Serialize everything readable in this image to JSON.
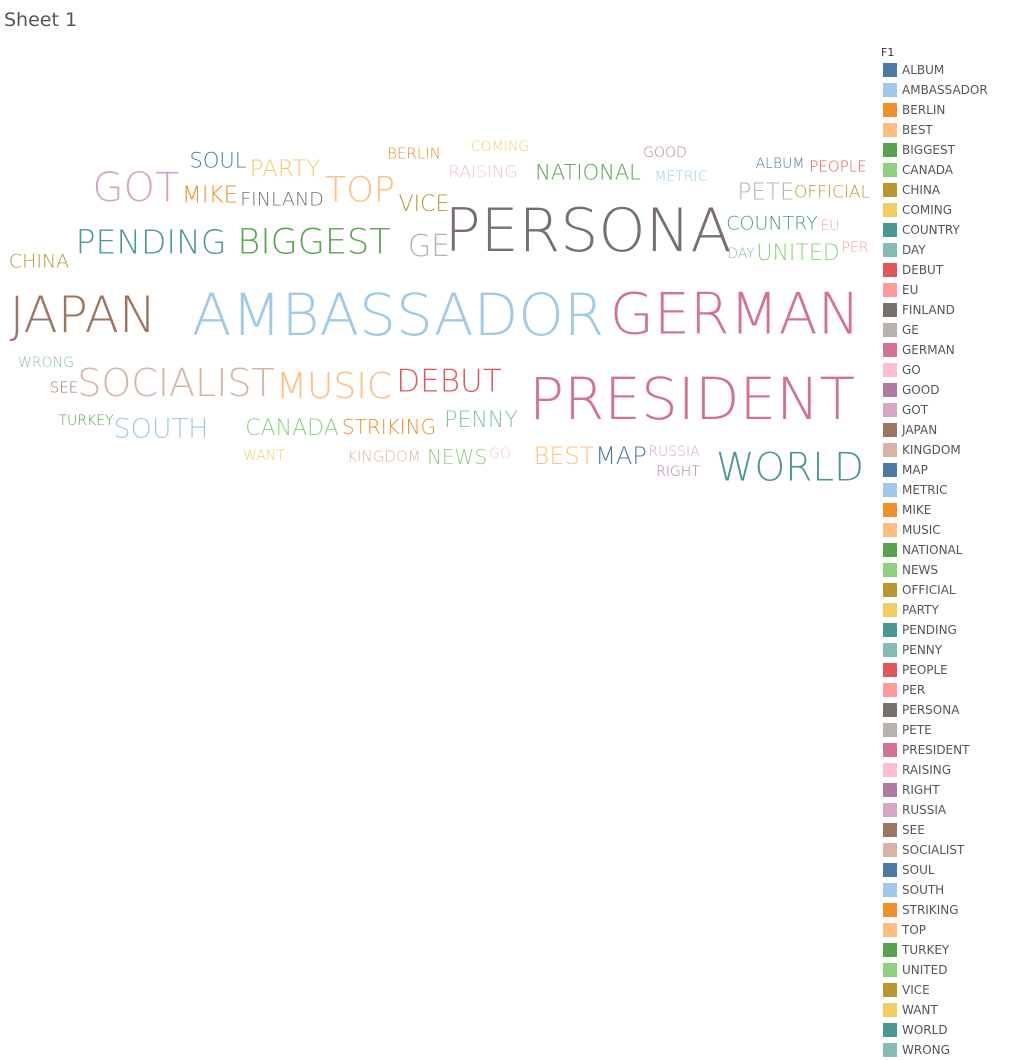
{
  "sheet": {
    "title": "Sheet 1"
  },
  "legend": {
    "title": "F1"
  },
  "chart_data": {
    "type": "word_cloud",
    "words": [
      {
        "text": "ALBUM",
        "color": "#4e79a7"
      },
      {
        "text": "AMBASSADOR",
        "color": "#a0cbe8"
      },
      {
        "text": "BERLIN",
        "color": "#f28e2b"
      },
      {
        "text": "BEST",
        "color": "#ffbe7d"
      },
      {
        "text": "BIGGEST",
        "color": "#59a14f"
      },
      {
        "text": "CANADA",
        "color": "#8cd17d"
      },
      {
        "text": "CHINA",
        "color": "#b6992d"
      },
      {
        "text": "COMING",
        "color": "#f1ce63"
      },
      {
        "text": "COUNTRY",
        "color": "#499894"
      },
      {
        "text": "DAY",
        "color": "#86bcb6"
      },
      {
        "text": "DEBUT",
        "color": "#e15759"
      },
      {
        "text": "EU",
        "color": "#ff9d9a"
      },
      {
        "text": "FINLAND",
        "color": "#79706e"
      },
      {
        "text": "GE",
        "color": "#bab0ac"
      },
      {
        "text": "GERMAN",
        "color": "#d37295"
      },
      {
        "text": "GO",
        "color": "#fabfd2"
      },
      {
        "text": "GOOD",
        "color": "#b07aa1"
      },
      {
        "text": "GOT",
        "color": "#d4a6c8"
      },
      {
        "text": "JAPAN",
        "color": "#9d7660"
      },
      {
        "text": "KINGDOM",
        "color": "#d7b5a6"
      },
      {
        "text": "MAP",
        "color": "#4e79a7"
      },
      {
        "text": "METRIC",
        "color": "#a0cbe8"
      },
      {
        "text": "MIKE",
        "color": "#f28e2b"
      },
      {
        "text": "MUSIC",
        "color": "#ffbe7d"
      },
      {
        "text": "NATIONAL",
        "color": "#59a14f"
      },
      {
        "text": "NEWS",
        "color": "#8cd17d"
      },
      {
        "text": "OFFICIAL",
        "color": "#b6992d"
      },
      {
        "text": "PARTY",
        "color": "#f1ce63"
      },
      {
        "text": "PENDING",
        "color": "#499894"
      },
      {
        "text": "PENNY",
        "color": "#86bcb6"
      },
      {
        "text": "PEOPLE",
        "color": "#e15759"
      },
      {
        "text": "PER",
        "color": "#ff9d9a"
      },
      {
        "text": "PERSONA",
        "color": "#79706e"
      },
      {
        "text": "PETE",
        "color": "#bab0ac"
      },
      {
        "text": "PRESIDENT",
        "color": "#d37295"
      },
      {
        "text": "RAISING",
        "color": "#fabfd2"
      },
      {
        "text": "RIGHT",
        "color": "#b07aa1"
      },
      {
        "text": "RUSSIA",
        "color": "#d4a6c8"
      },
      {
        "text": "SEE",
        "color": "#9d7660"
      },
      {
        "text": "SOCIALIST",
        "color": "#d7b5a6"
      },
      {
        "text": "SOUL",
        "color": "#4e79a7"
      },
      {
        "text": "SOUTH",
        "color": "#a0cbe8"
      },
      {
        "text": "STRIKING",
        "color": "#f28e2b"
      },
      {
        "text": "TOP",
        "color": "#ffbe7d"
      },
      {
        "text": "TURKEY",
        "color": "#59a14f"
      },
      {
        "text": "UNITED",
        "color": "#8cd17d"
      },
      {
        "text": "VICE",
        "color": "#b6992d"
      },
      {
        "text": "WANT",
        "color": "#f1ce63"
      },
      {
        "text": "WORLD",
        "color": "#499894"
      },
      {
        "text": "WRONG",
        "color": "#86bcb6"
      }
    ]
  }
}
